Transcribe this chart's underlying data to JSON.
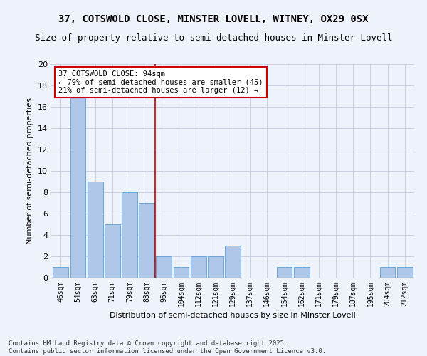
{
  "title1": "37, COTSWOLD CLOSE, MINSTER LOVELL, WITNEY, OX29 0SX",
  "title2": "Size of property relative to semi-detached houses in Minster Lovell",
  "xlabel": "Distribution of semi-detached houses by size in Minster Lovell",
  "ylabel": "Number of semi-detached properties",
  "categories": [
    "46sqm",
    "54sqm",
    "63sqm",
    "71sqm",
    "79sqm",
    "88sqm",
    "96sqm",
    "104sqm",
    "112sqm",
    "121sqm",
    "129sqm",
    "137sqm",
    "146sqm",
    "154sqm",
    "162sqm",
    "171sqm",
    "179sqm",
    "187sqm",
    "195sqm",
    "204sqm",
    "212sqm"
  ],
  "values": [
    1,
    17,
    9,
    5,
    8,
    7,
    2,
    1,
    2,
    2,
    3,
    0,
    0,
    1,
    1,
    0,
    0,
    0,
    0,
    1,
    1
  ],
  "bar_color": "#aec6e8",
  "bar_edge_color": "#5a9fd4",
  "highlight_line_color": "#cc0000",
  "annotation_text": "37 COTSWOLD CLOSE: 94sqm\n← 79% of semi-detached houses are smaller (45)\n21% of semi-detached houses are larger (12) →",
  "annotation_box_color": "#ffffff",
  "annotation_box_edge_color": "#cc0000",
  "ylim": [
    0,
    20
  ],
  "yticks": [
    0,
    2,
    4,
    6,
    8,
    10,
    12,
    14,
    16,
    18,
    20
  ],
  "footer": "Contains HM Land Registry data © Crown copyright and database right 2025.\nContains public sector information licensed under the Open Government Licence v3.0.",
  "bg_color": "#eef2fb",
  "grid_color": "#c8cfe0",
  "title1_fontsize": 10,
  "title2_fontsize": 9,
  "annotation_fontsize": 7.5,
  "footer_fontsize": 6.5,
  "ylabel_fontsize": 8,
  "xlabel_fontsize": 8
}
